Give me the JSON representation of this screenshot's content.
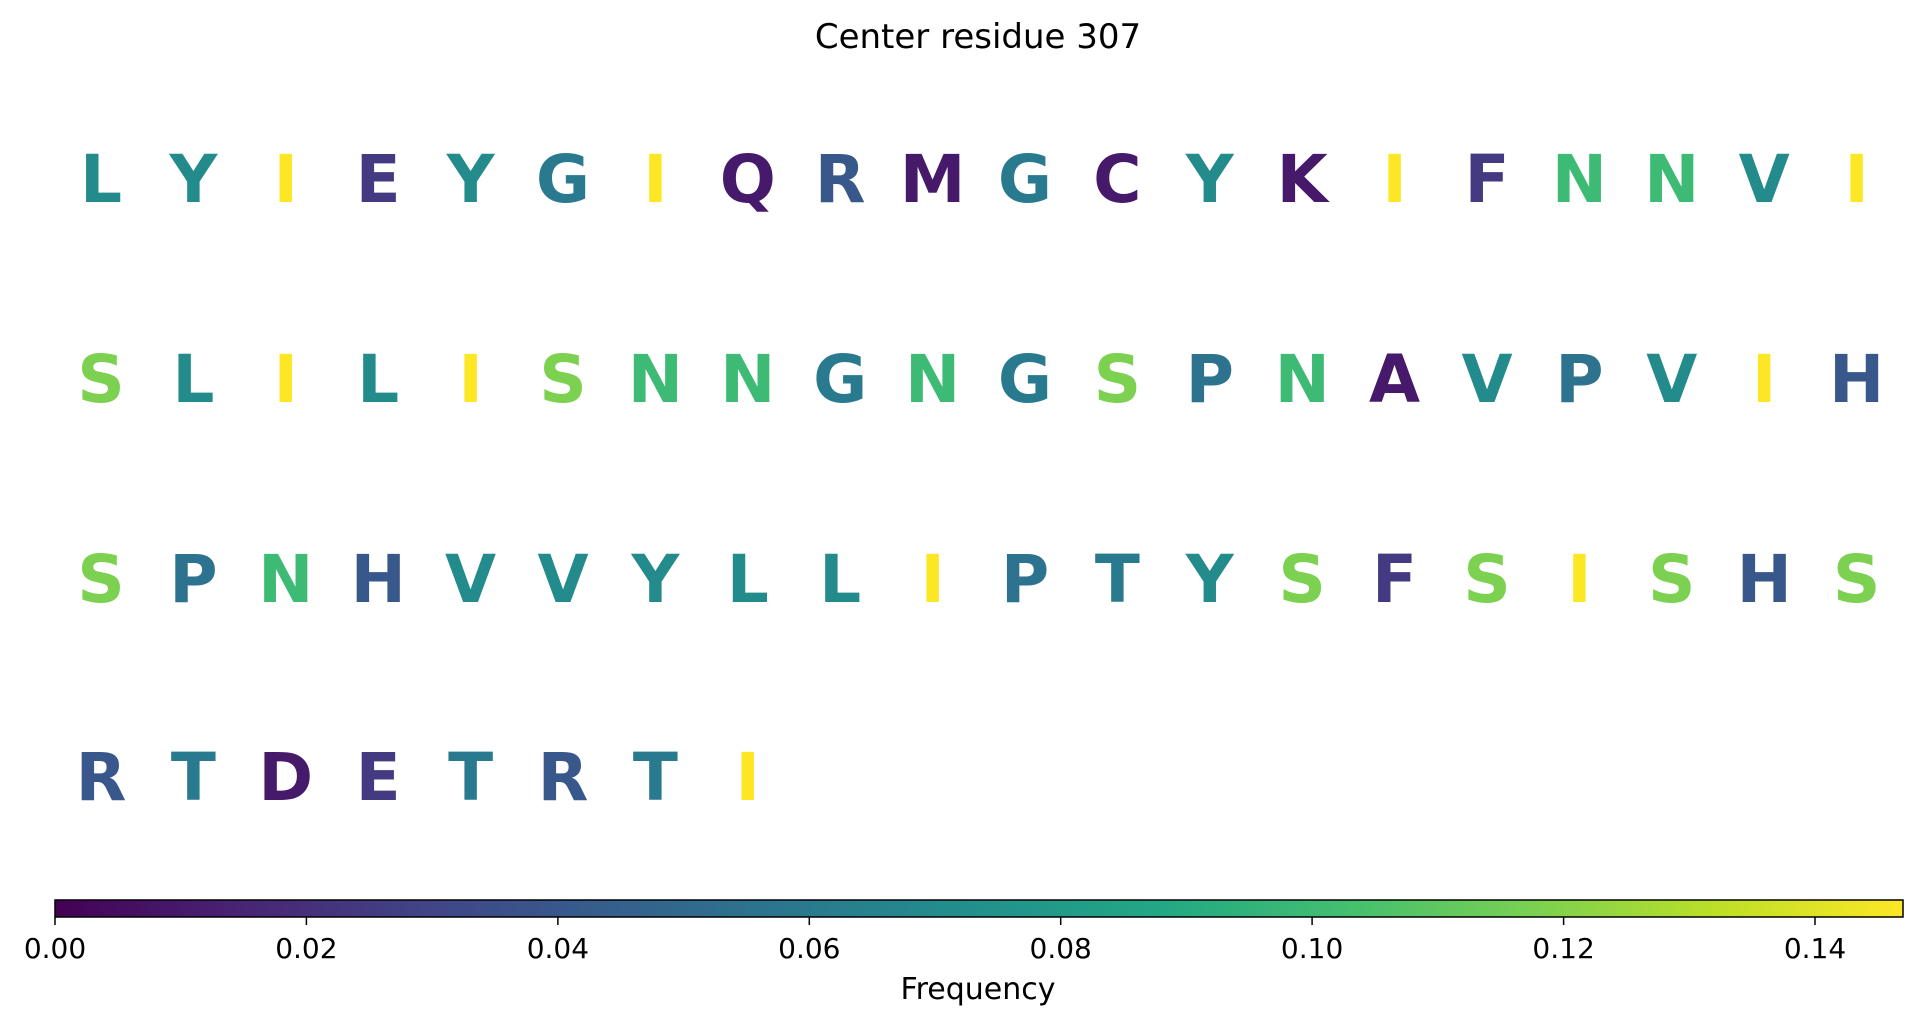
{
  "chart_data": {
    "type": "heatmap",
    "title": "Center residue 307",
    "residues": [
      {
        "letter": "L",
        "value": 0.07
      },
      {
        "letter": "Y",
        "value": 0.07
      },
      {
        "letter": "I",
        "value": 0.147
      },
      {
        "letter": "E",
        "value": 0.025
      },
      {
        "letter": "Y",
        "value": 0.07
      },
      {
        "letter": "G",
        "value": 0.06
      },
      {
        "letter": "I",
        "value": 0.147
      },
      {
        "letter": "Q",
        "value": 0.01
      },
      {
        "letter": "R",
        "value": 0.04
      },
      {
        "letter": "M",
        "value": 0.01
      },
      {
        "letter": "G",
        "value": 0.06
      },
      {
        "letter": "C",
        "value": 0.01
      },
      {
        "letter": "Y",
        "value": 0.07
      },
      {
        "letter": "K",
        "value": 0.01
      },
      {
        "letter": "I",
        "value": 0.147
      },
      {
        "letter": "F",
        "value": 0.025
      },
      {
        "letter": "N",
        "value": 0.1
      },
      {
        "letter": "N",
        "value": 0.1
      },
      {
        "letter": "V",
        "value": 0.07
      },
      {
        "letter": "I",
        "value": 0.147
      },
      {
        "letter": "S",
        "value": 0.118
      },
      {
        "letter": "L",
        "value": 0.07
      },
      {
        "letter": "I",
        "value": 0.147
      },
      {
        "letter": "L",
        "value": 0.07
      },
      {
        "letter": "I",
        "value": 0.147
      },
      {
        "letter": "S",
        "value": 0.118
      },
      {
        "letter": "N",
        "value": 0.1
      },
      {
        "letter": "N",
        "value": 0.1
      },
      {
        "letter": "G",
        "value": 0.06
      },
      {
        "letter": "N",
        "value": 0.1
      },
      {
        "letter": "G",
        "value": 0.06
      },
      {
        "letter": "S",
        "value": 0.118
      },
      {
        "letter": "P",
        "value": 0.055
      },
      {
        "letter": "N",
        "value": 0.1
      },
      {
        "letter": "A",
        "value": 0.01
      },
      {
        "letter": "V",
        "value": 0.07
      },
      {
        "letter": "P",
        "value": 0.055
      },
      {
        "letter": "V",
        "value": 0.07
      },
      {
        "letter": "I",
        "value": 0.147
      },
      {
        "letter": "H",
        "value": 0.04
      },
      {
        "letter": "S",
        "value": 0.118
      },
      {
        "letter": "P",
        "value": 0.055
      },
      {
        "letter": "N",
        "value": 0.1
      },
      {
        "letter": "H",
        "value": 0.04
      },
      {
        "letter": "V",
        "value": 0.07
      },
      {
        "letter": "V",
        "value": 0.07
      },
      {
        "letter": "Y",
        "value": 0.07
      },
      {
        "letter": "L",
        "value": 0.07
      },
      {
        "letter": "L",
        "value": 0.07
      },
      {
        "letter": "I",
        "value": 0.147
      },
      {
        "letter": "P",
        "value": 0.055
      },
      {
        "letter": "T",
        "value": 0.06
      },
      {
        "letter": "Y",
        "value": 0.07
      },
      {
        "letter": "S",
        "value": 0.118
      },
      {
        "letter": "F",
        "value": 0.025
      },
      {
        "letter": "S",
        "value": 0.118
      },
      {
        "letter": "I",
        "value": 0.147
      },
      {
        "letter": "S",
        "value": 0.118
      },
      {
        "letter": "H",
        "value": 0.04
      },
      {
        "letter": "S",
        "value": 0.118
      },
      {
        "letter": "R",
        "value": 0.04
      },
      {
        "letter": "T",
        "value": 0.06
      },
      {
        "letter": "D",
        "value": 0.01
      },
      {
        "letter": "E",
        "value": 0.025
      },
      {
        "letter": "T",
        "value": 0.06
      },
      {
        "letter": "R",
        "value": 0.04
      },
      {
        "letter": "T",
        "value": 0.06
      },
      {
        "letter": "I",
        "value": 0.147
      }
    ],
    "columns": 20,
    "colorbar": {
      "label": "Frequency",
      "range": [
        0,
        0.147
      ],
      "ticks": [
        0.0,
        0.02,
        0.04,
        0.06,
        0.08,
        0.1,
        0.12,
        0.14
      ],
      "tick_labels": [
        "0.00",
        "0.02",
        "0.04",
        "0.06",
        "0.08",
        "0.10",
        "0.12",
        "0.14"
      ],
      "colormap": "viridis"
    }
  }
}
